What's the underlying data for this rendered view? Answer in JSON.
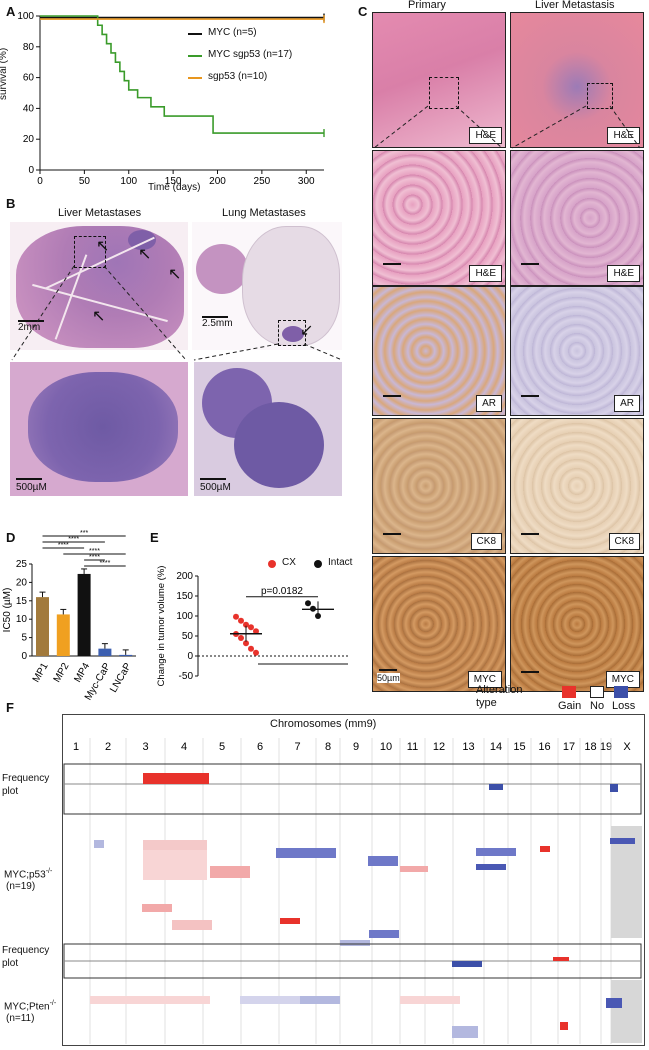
{
  "panels": {
    "A": "A",
    "B": "B",
    "C": "C",
    "D": "D",
    "E": "E",
    "F": "F"
  },
  "panel_a": {
    "ylabel": "survival (%)",
    "xlabel": "Time (days)",
    "legend": [
      {
        "name": "MYC (n=5)",
        "color": "#111111"
      },
      {
        "name": "MYC sgp53 (n=17)",
        "color": "#3a9b2a"
      },
      {
        "name": "sgp53 (n=10)",
        "color": "#e8961e"
      }
    ]
  },
  "chart_data": [
    {
      "type": "line",
      "panel": "A",
      "xlabel": "Time (days)",
      "ylabel": "survival (%)",
      "xlim": [
        0,
        320
      ],
      "ylim": [
        0,
        100
      ],
      "xticks": [
        0,
        50,
        100,
        150,
        200,
        250,
        300
      ],
      "yticks": [
        0,
        20,
        40,
        60,
        80,
        100
      ],
      "series": [
        {
          "name": "MYC (n=5)",
          "color": "#111111",
          "x": [
            0,
            320
          ],
          "y": [
            99,
            99
          ]
        },
        {
          "name": "MYC sgp53 (n=17)",
          "color": "#3a9b2a",
          "x": [
            0,
            65,
            65,
            70,
            70,
            75,
            75,
            80,
            80,
            85,
            85,
            90,
            90,
            95,
            95,
            100,
            100,
            110,
            110,
            125,
            125,
            140,
            140,
            155,
            155,
            195,
            195,
            320
          ],
          "y": [
            100,
            100,
            94,
            94,
            88,
            88,
            82,
            82,
            76,
            76,
            70,
            70,
            64,
            64,
            58,
            58,
            52,
            52,
            47,
            47,
            41,
            41,
            35,
            35,
            35,
            35,
            24,
            24
          ]
        },
        {
          "name": "sgp53 (n=10)",
          "color": "#e8961e",
          "x": [
            0,
            320
          ],
          "y": [
            98,
            98
          ]
        }
      ]
    },
    {
      "type": "bar",
      "panel": "D",
      "ylabel": "IC50 (µM)",
      "categories": [
        "MP1",
        "MP2",
        "MP4",
        "Myc-CaP",
        "LNCaP"
      ],
      "values": [
        16,
        11.3,
        22.3,
        2,
        0.3
      ],
      "colors": [
        "#a27a3c",
        "#f0a020",
        "#111111",
        "#3c5fb0",
        "#3c5fb0"
      ],
      "ylim": [
        0,
        25
      ],
      "yticks": [
        0,
        5,
        10,
        15,
        20,
        25
      ],
      "significance": [
        "***",
        "****",
        "****",
        "****",
        "****",
        "****"
      ]
    },
    {
      "type": "scatter",
      "panel": "E",
      "ylabel": "Change in tumor volume (%)",
      "ylim": [
        -50,
        200
      ],
      "yticks": [
        -50,
        0,
        50,
        100,
        150,
        200
      ],
      "annotation": "p=0.0182",
      "series": [
        {
          "name": "CX",
          "color": "#e8322b",
          "x": 1,
          "values": [
            98,
            88,
            78,
            72,
            62,
            55,
            45,
            32,
            18,
            8
          ]
        },
        {
          "name": "Intact",
          "color": "#111111",
          "x": 2,
          "values": [
            132,
            118,
            100
          ]
        }
      ]
    }
  ],
  "panel_b": {
    "liver_title": "Liver Metastases",
    "lung_title": "Lung Metastases",
    "scale_liver": "2mm",
    "scale_lung": "2.5mm",
    "scale_liver_zoom": "500µM",
    "scale_lung_zoom": "500µM"
  },
  "panel_c": {
    "col_primary": "Primary",
    "col_liver": "Liver Metastasis",
    "rows": [
      "H&E",
      "H&E",
      "AR",
      "CK8",
      "MYC"
    ],
    "scale_label": "50µm"
  },
  "panel_e": {
    "legend_cx": "CX",
    "legend_intact": "Intact",
    "pvalue": "p=0.0182"
  },
  "panel_f": {
    "title": "Chromosomes (mm9)",
    "legend_title_1": "Alteration",
    "legend_title_2": "type",
    "legend_items": [
      {
        "label": "Gain",
        "color": "#e8322b"
      },
      {
        "label": "No",
        "color": "#ffffff"
      },
      {
        "label": "Loss",
        "color": "#3c4fa8"
      }
    ],
    "chromosomes": [
      "1",
      "2",
      "3",
      "4",
      "5",
      "6",
      "7",
      "8",
      "9",
      "10",
      "11",
      "12",
      "13",
      "14",
      "15",
      "16",
      "17",
      "18",
      "19",
      "X"
    ],
    "freq_label_1": "Frequency",
    "freq_label_2": "plot",
    "group1_label": "MYC;p53",
    "group1_sup": "-/-",
    "group1_n": "(n=19)",
    "group2_label": "MYC;Pten",
    "group2_sup": "-/-",
    "group2_n": "(n=11)"
  }
}
